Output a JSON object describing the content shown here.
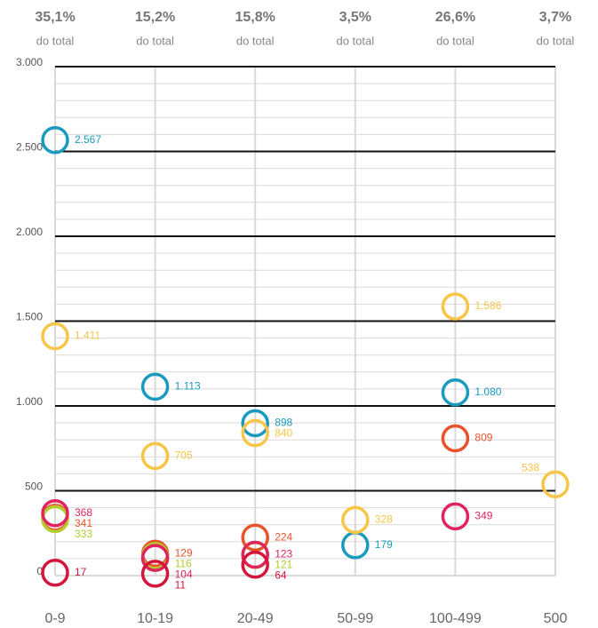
{
  "chart_data": {
    "type": "dot",
    "categories": [
      "0-9",
      "10-19",
      "20-49",
      "50-99",
      "100-499",
      "500"
    ],
    "shares": [
      "35,1%",
      "15,2%",
      "15,8%",
      "3,5%",
      "26,6%",
      "3,7%"
    ],
    "share_note": "do total",
    "ylim": [
      0,
      3000
    ],
    "yticks": [
      0,
      500,
      {
        "value": 1000,
        "label": "1.000"
      },
      {
        "value": 1500,
        "label": "1.500"
      },
      {
        "value": 2000,
        "label": "2.000"
      },
      {
        "value": 2500,
        "label": "2.500"
      },
      {
        "value": 3000,
        "label": "3.000"
      }
    ],
    "grid": true,
    "minor_grid": true,
    "series": [
      {
        "color": "#1b9ac0",
        "values": [
          2567,
          1113,
          898,
          179,
          1080,
          null
        ],
        "value_labels": [
          "2.567",
          "1.113",
          "898",
          "179",
          "1.080",
          null
        ]
      },
      {
        "color": "#f7c548",
        "values": [
          1411,
          705,
          840,
          328,
          1586,
          538
        ],
        "value_labels": [
          "1.411",
          "705",
          "840",
          "328",
          "1.586",
          "538"
        ]
      },
      {
        "color": "#e8532b",
        "values": [
          341,
          129,
          224,
          null,
          809,
          null
        ],
        "value_labels": [
          "341",
          "129",
          "224",
          null,
          "809",
          null
        ]
      },
      {
        "color": "#b5cc2e",
        "values": [
          333,
          116,
          121,
          null,
          null,
          null
        ],
        "value_labels": [
          "333",
          "116",
          "121",
          null,
          null,
          null
        ]
      },
      {
        "color": "#e0245e",
        "values": [
          368,
          104,
          123,
          null,
          349,
          null
        ],
        "value_labels": [
          "368",
          "104",
          "123",
          null,
          "349",
          null
        ]
      },
      {
        "color": "#d4163c",
        "values": [
          17,
          11,
          64,
          null,
          null,
          null
        ],
        "value_labels": [
          "17",
          "11",
          "64",
          null,
          null,
          null
        ]
      }
    ]
  }
}
